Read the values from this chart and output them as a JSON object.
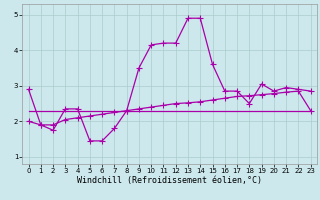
{
  "xlabel": "Windchill (Refroidissement éolien,°C)",
  "xlim": [
    -0.5,
    23.5
  ],
  "ylim": [
    0.8,
    5.3
  ],
  "xticks": [
    0,
    1,
    2,
    3,
    4,
    5,
    6,
    7,
    8,
    9,
    10,
    11,
    12,
    13,
    14,
    15,
    16,
    17,
    18,
    19,
    20,
    21,
    22,
    23
  ],
  "yticks": [
    1,
    2,
    3,
    4,
    5
  ],
  "background_color": "#cce8ec",
  "line_color": "#aa00aa",
  "grid_color": "#aacccc",
  "line1_x": [
    0,
    1,
    2,
    3,
    4,
    5,
    6,
    7,
    8,
    9,
    10,
    11,
    12,
    13,
    14,
    15,
    16,
    17,
    18,
    19,
    20,
    21,
    22,
    23
  ],
  "line1_y": [
    2.9,
    1.9,
    1.75,
    2.35,
    2.35,
    1.45,
    1.45,
    1.8,
    2.3,
    3.5,
    4.15,
    4.2,
    4.2,
    4.9,
    4.9,
    3.6,
    2.85,
    2.85,
    2.5,
    3.05,
    2.85,
    2.95,
    2.9,
    2.85
  ],
  "line2_x": [
    0,
    23
  ],
  "line2_y": [
    2.3,
    2.3
  ],
  "line3_x": [
    0,
    1,
    2,
    3,
    4,
    5,
    6,
    7,
    8,
    9,
    10,
    11,
    12,
    13,
    14,
    15,
    16,
    17,
    18,
    19,
    20,
    21,
    22,
    23
  ],
  "line3_y": [
    2.0,
    1.9,
    1.9,
    2.05,
    2.1,
    2.15,
    2.2,
    2.25,
    2.3,
    2.35,
    2.4,
    2.45,
    2.5,
    2.52,
    2.55,
    2.6,
    2.65,
    2.7,
    2.72,
    2.75,
    2.78,
    2.82,
    2.85,
    2.3
  ],
  "marker": "+",
  "markersize": 4,
  "linewidth": 0.9,
  "xlabel_fontsize": 6,
  "tick_fontsize": 5
}
